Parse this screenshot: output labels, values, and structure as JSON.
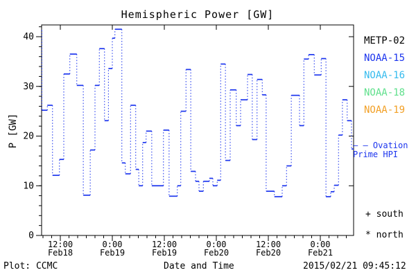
{
  "chart_data": {
    "type": "line",
    "subtype": "step",
    "title": "Hemispheric Power [GW]",
    "xlabel": "Date and Time",
    "ylabel": "P [GW]",
    "ylim": [
      0,
      42.37
    ],
    "x_hours_range": [
      7.68,
      79.68
    ],
    "grid": "off",
    "legend_position": "right-outside",
    "y_major_ticks": [
      0,
      10,
      20,
      30,
      40
    ],
    "y_minor_step": 2,
    "x_minor_step_hours": 2,
    "x_major_ticks": [
      {
        "hour": 12,
        "time": "12:00",
        "date": "Feb18"
      },
      {
        "hour": 24,
        "time": "0:00",
        "date": "Feb19"
      },
      {
        "hour": 36,
        "time": "12:00",
        "date": "Feb19"
      },
      {
        "hour": 48,
        "time": "0:00",
        "date": "Feb20"
      },
      {
        "hour": 60,
        "time": "12:00",
        "date": "Feb20"
      },
      {
        "hour": 72,
        "time": "0:00",
        "date": "Feb21"
      }
    ],
    "line_color": "#1c35ee",
    "axis_color": "#000000",
    "steps_hour_value": [
      [
        7.68,
        41.3
      ],
      [
        7.75,
        25.2
      ],
      [
        9.0,
        26.2
      ],
      [
        10.2,
        12.1
      ],
      [
        11.8,
        15.3
      ],
      [
        12.8,
        32.5
      ],
      [
        14.2,
        36.5
      ],
      [
        15.8,
        30.2
      ],
      [
        17.3,
        8.1
      ],
      [
        18.9,
        17.2
      ],
      [
        20.0,
        30.2
      ],
      [
        21.0,
        37.6
      ],
      [
        22.2,
        23.1
      ],
      [
        23.1,
        33.6
      ],
      [
        24.0,
        39.7
      ],
      [
        24.6,
        41.5
      ],
      [
        26.2,
        14.6
      ],
      [
        27.0,
        12.4
      ],
      [
        28.2,
        26.2
      ],
      [
        29.4,
        13.3
      ],
      [
        30.1,
        10.0
      ],
      [
        31.0,
        18.7
      ],
      [
        31.8,
        21.0
      ],
      [
        33.1,
        10.0
      ],
      [
        35.8,
        21.2
      ],
      [
        37.1,
        7.9
      ],
      [
        39.0,
        10.0
      ],
      [
        39.8,
        25.0
      ],
      [
        41.0,
        33.4
      ],
      [
        42.1,
        12.9
      ],
      [
        43.2,
        10.9
      ],
      [
        44.0,
        8.9
      ],
      [
        45.0,
        10.9
      ],
      [
        46.4,
        11.5
      ],
      [
        47.2,
        10.0
      ],
      [
        48.2,
        11.1
      ],
      [
        49.0,
        34.5
      ],
      [
        50.1,
        15.1
      ],
      [
        51.2,
        29.3
      ],
      [
        52.6,
        22.1
      ],
      [
        53.6,
        27.3
      ],
      [
        55.2,
        32.4
      ],
      [
        56.3,
        19.3
      ],
      [
        57.4,
        31.4
      ],
      [
        58.6,
        28.3
      ],
      [
        59.5,
        8.9
      ],
      [
        61.4,
        7.8
      ],
      [
        63.2,
        10.0
      ],
      [
        64.2,
        14.0
      ],
      [
        65.3,
        28.2
      ],
      [
        67.2,
        22.1
      ],
      [
        68.2,
        35.5
      ],
      [
        69.3,
        36.4
      ],
      [
        70.6,
        32.3
      ],
      [
        72.2,
        35.6
      ],
      [
        73.3,
        7.8
      ],
      [
        74.4,
        8.8
      ],
      [
        75.2,
        10.1
      ],
      [
        76.2,
        20.2
      ],
      [
        77.1,
        27.3
      ],
      [
        78.2,
        23.1
      ],
      [
        79.2,
        17.4
      ]
    ],
    "legend": [
      {
        "label": "METP-02",
        "color": "#000000"
      },
      {
        "label": "NOAA-15",
        "color": "#1c35ee"
      },
      {
        "label": "NOAA-16",
        "color": "#35bbee"
      },
      {
        "label": "NOAA-18",
        "color": "#5fe08c"
      },
      {
        "label": "NOAA-19",
        "color": "#f2a026"
      }
    ],
    "line_label": {
      "line1": "— — Ovation",
      "line2": "Prime HPI"
    },
    "south_label": "+ south",
    "north_label": "* north",
    "footer": {
      "left": "Plot: CCMC",
      "right": "2015/02/21 09:45:12"
    }
  }
}
